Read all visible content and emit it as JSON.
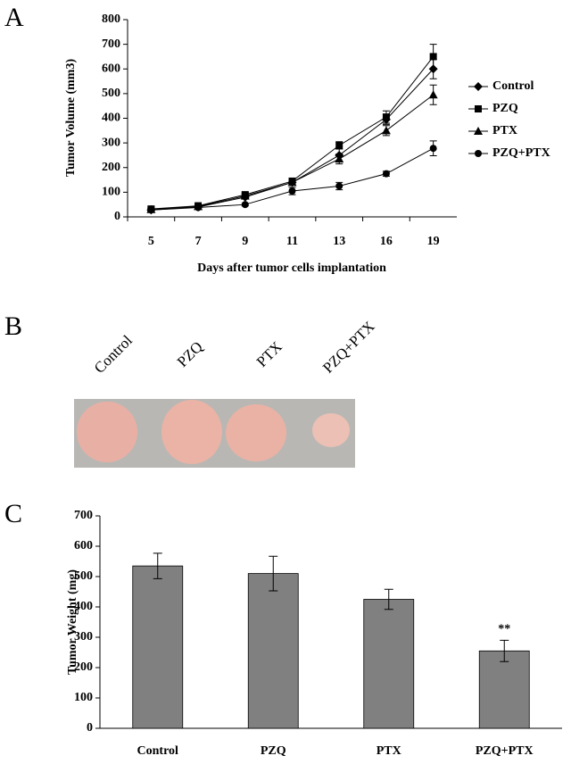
{
  "chart_data": [
    {
      "type": "line",
      "panel_label": "A",
      "y_label": "Tumor Volume (mm3)",
      "x_label": "Days after tumor cells implantation",
      "categories": [
        "5",
        "7",
        "9",
        "11",
        "13",
        "16",
        "19"
      ],
      "ylim": [
        0,
        800
      ],
      "yticks": [
        0,
        100,
        200,
        300,
        400,
        500,
        600,
        700,
        800
      ],
      "series": [
        {
          "name": "Control",
          "color": "#000000",
          "marker": "diamond",
          "values": [
            28,
            40,
            80,
            140,
            250,
            395,
            600
          ],
          "errors": [
            5,
            5,
            8,
            10,
            25,
            20,
            40
          ]
        },
        {
          "name": "PZQ",
          "color": "#000000",
          "marker": "square",
          "values": [
            32,
            45,
            90,
            145,
            290,
            405,
            650
          ],
          "errors": [
            5,
            5,
            8,
            10,
            15,
            25,
            50
          ]
        },
        {
          "name": "PTX",
          "color": "#000000",
          "marker": "triangle",
          "values": [
            30,
            42,
            85,
            140,
            235,
            350,
            495
          ],
          "errors": [
            5,
            5,
            8,
            10,
            20,
            20,
            40
          ]
        },
        {
          "name": "PZQ+PTX",
          "color": "#000000",
          "marker": "circle",
          "values": [
            28,
            38,
            50,
            105,
            125,
            175,
            278
          ],
          "errors": [
            5,
            5,
            5,
            15,
            15,
            10,
            30
          ]
        }
      ]
    },
    {
      "type": "bar",
      "panel_label": "C",
      "y_label": "Tumor Weight (mg)",
      "categories": [
        "Control",
        "PZQ",
        "PTX",
        "PZQ+PTX"
      ],
      "values": [
        535,
        510,
        425,
        255
      ],
      "errors": [
        42,
        57,
        33,
        35
      ],
      "color": "#808080",
      "annotations": [
        "**"
      ],
      "ylim": [
        0,
        700
      ],
      "yticks": [
        0,
        100,
        200,
        300,
        400,
        500,
        600,
        700
      ]
    }
  ],
  "photo": {
    "panel_label": "B",
    "labels": [
      "Control",
      "PZQ",
      "PTX",
      "PZQ+PTX"
    ]
  }
}
